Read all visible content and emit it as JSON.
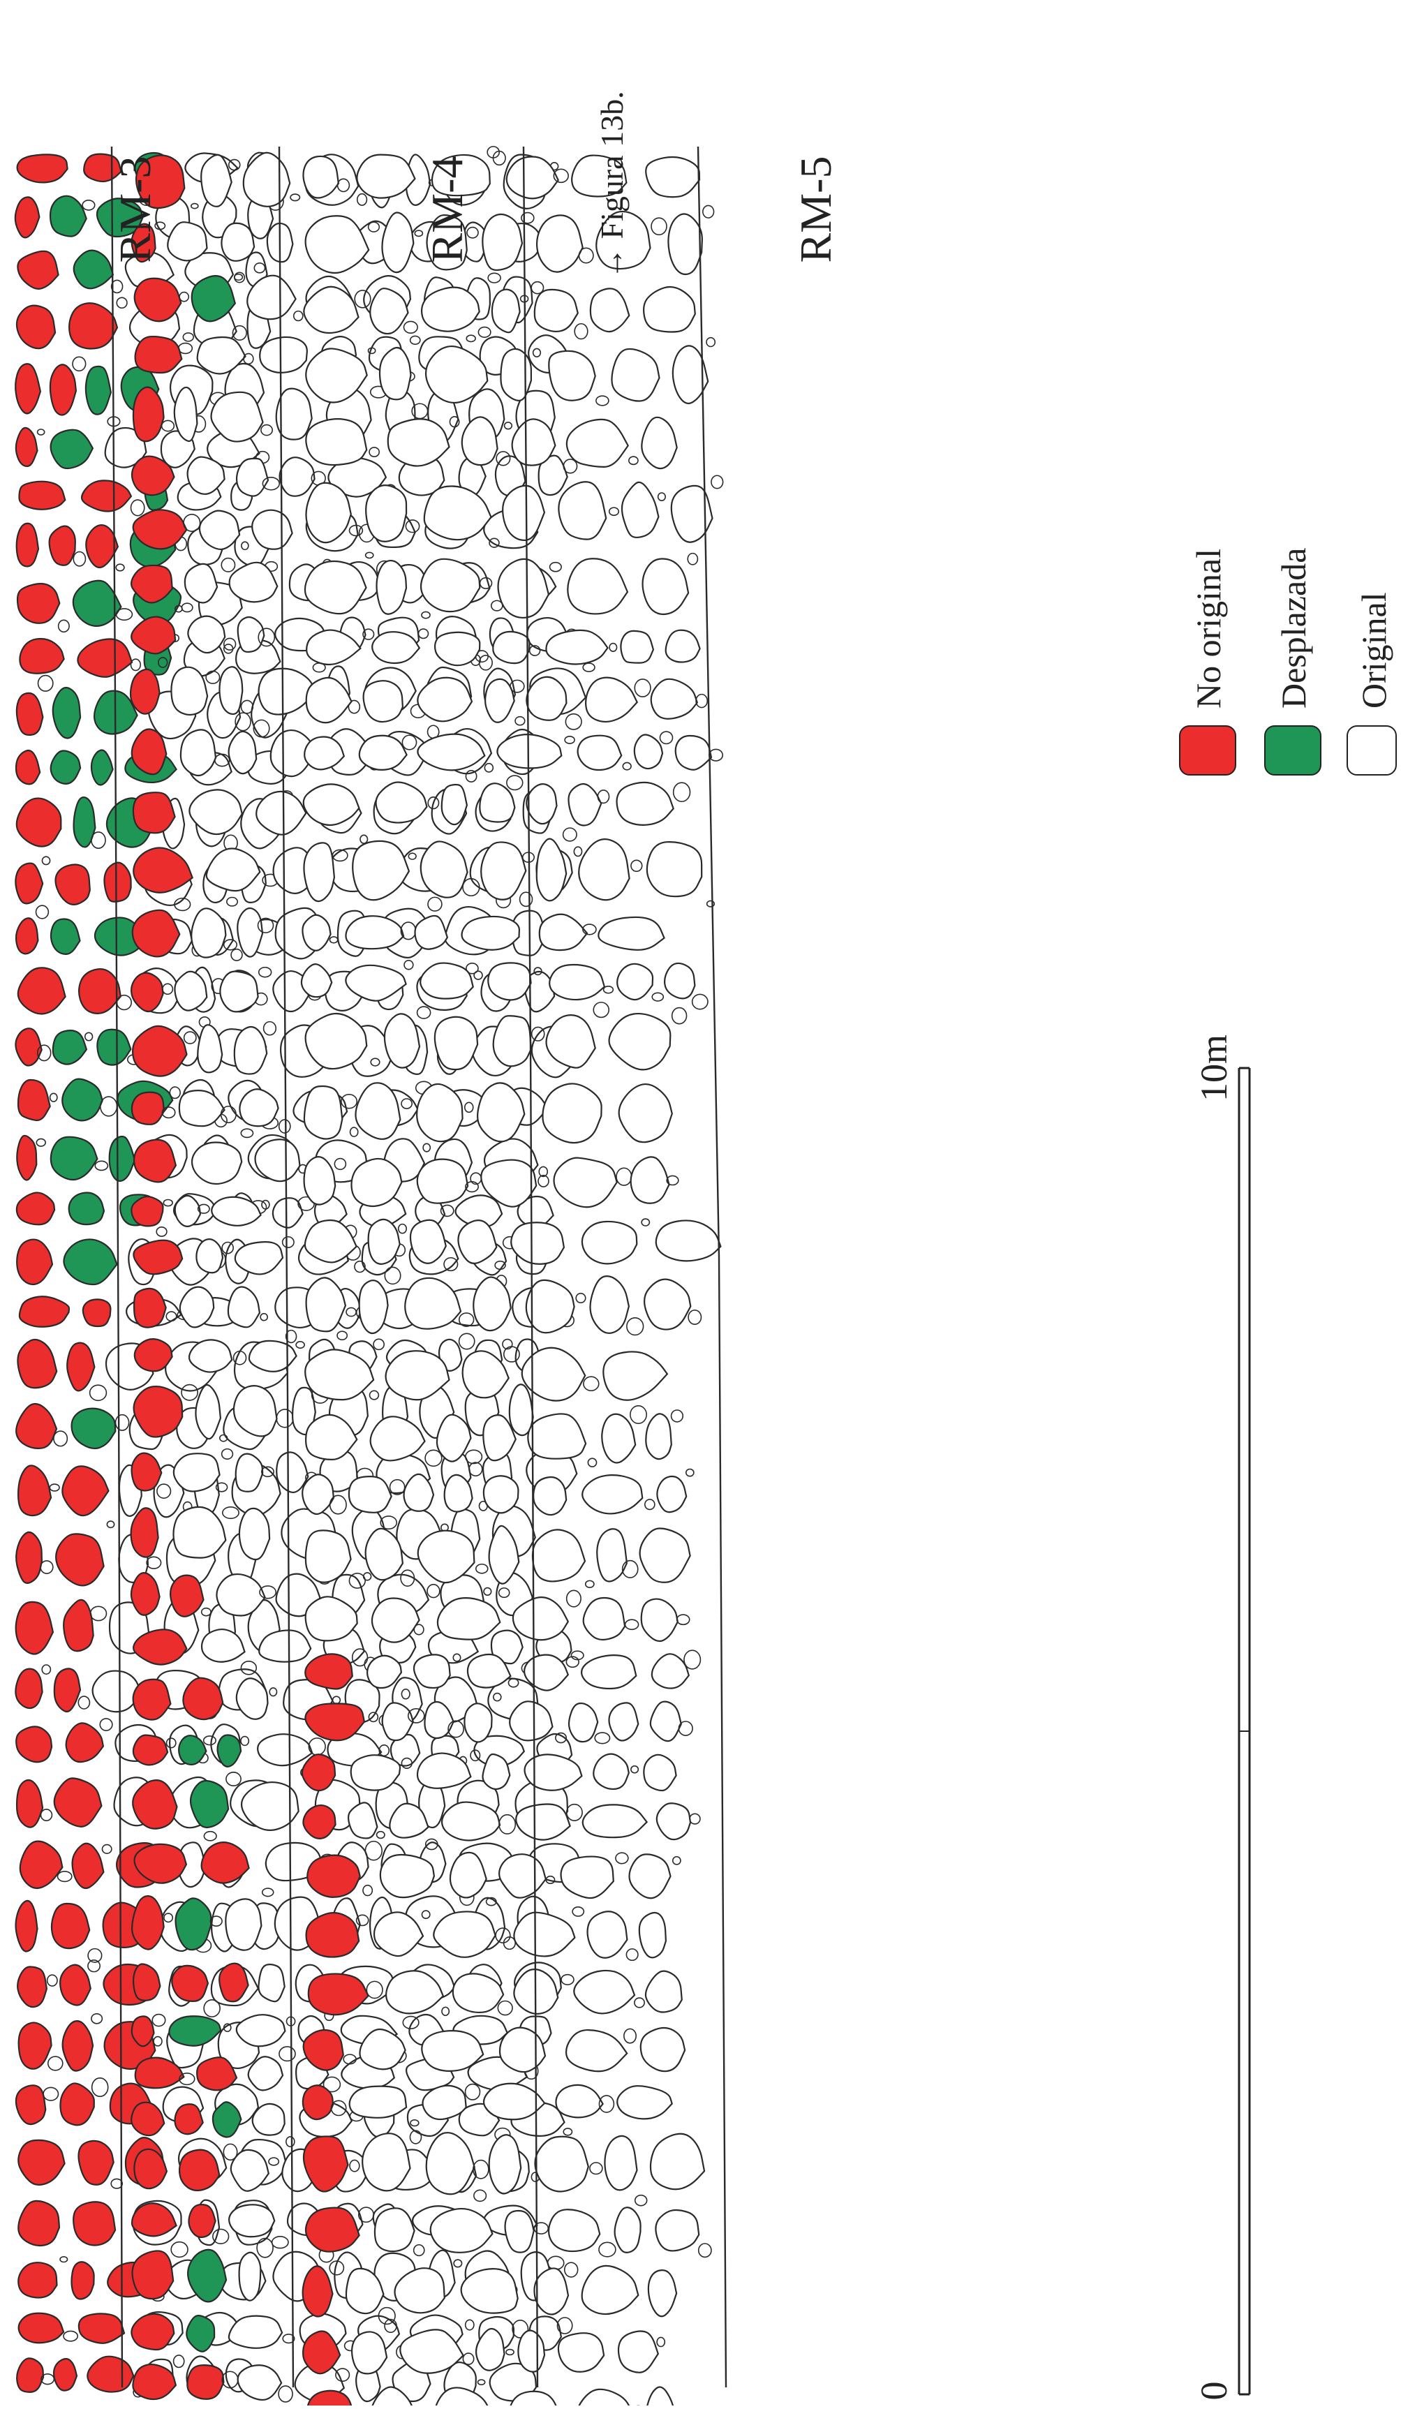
{
  "figure": {
    "labels": {
      "rm3": "RM-3",
      "rm4": "RM-4",
      "rm5": "RM-5",
      "figure_ref": "→ Figura 13b."
    },
    "legend": [
      {
        "key": "no_original",
        "label": "No original",
        "color": "#ec2d2d"
      },
      {
        "key": "desplazada",
        "label": "Desplazada",
        "color": "#1f9656"
      },
      {
        "key": "original",
        "label": "Original",
        "color": "#ffffff"
      }
    ],
    "scale": {
      "zero_label": "0",
      "max_label": "10m"
    },
    "strips": [
      {
        "name": "RM-3",
        "class_sequence": [
          "no_original",
          "desplazada",
          "original"
        ]
      },
      {
        "name": "RM-4",
        "class_sequence": [
          "no_original",
          "desplazada",
          "original"
        ]
      },
      {
        "name": "RM-5",
        "class_sequence": [
          "no_original",
          "original"
        ]
      }
    ]
  }
}
